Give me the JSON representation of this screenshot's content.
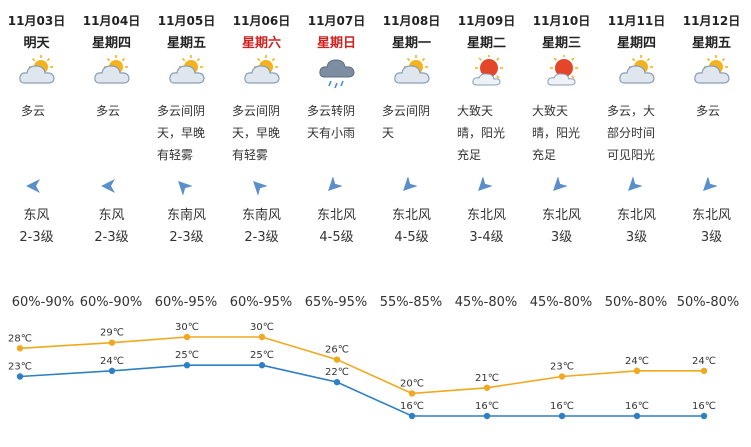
{
  "colors": {
    "weekend_text": "#d21f1f",
    "high_line": "#f0a81e",
    "low_line": "#2f7fc4",
    "wind_arrow": "#5b8fc9",
    "sun": "#f5b21c",
    "sun_red": "#e4462a",
    "cloud": "#8aa0b8"
  },
  "days": [
    {
      "date": "11月03日",
      "weekday": "明天",
      "weekend": false,
      "icon": "partly-cloudy-icon",
      "desc": [
        "多云"
      ],
      "wind_dir": "东风",
      "wind_level": "2-3级",
      "wind_heading": "east",
      "humidity": "60%-90%"
    },
    {
      "date": "11月04日",
      "weekday": "星期四",
      "weekend": false,
      "icon": "partly-cloudy-icon",
      "desc": [
        "多云"
      ],
      "wind_dir": "东风",
      "wind_level": "2-3级",
      "wind_heading": "east",
      "humidity": "60%-90%"
    },
    {
      "date": "11月05日",
      "weekday": "星期五",
      "weekend": false,
      "icon": "partly-cloudy-icon",
      "desc": [
        "多云间阴",
        "天，早晚",
        "有轻雾"
      ],
      "wind_dir": "东南风",
      "wind_level": "2-3级",
      "wind_heading": "southeast",
      "humidity": "60%-95%"
    },
    {
      "date": "11月06日",
      "weekday": "星期六",
      "weekend": true,
      "icon": "partly-cloudy-icon",
      "desc": [
        "多云间阴",
        "天，早晚",
        "有轻雾"
      ],
      "wind_dir": "东南风",
      "wind_level": "2-3级",
      "wind_heading": "southeast",
      "humidity": "60%-95%"
    },
    {
      "date": "11月07日",
      "weekday": "星期日",
      "weekend": true,
      "icon": "light-rain-icon",
      "desc": [
        "多云转阴",
        "天有小雨"
      ],
      "wind_dir": "东北风",
      "wind_level": "4-5级",
      "wind_heading": "northeast",
      "humidity": "65%-95%"
    },
    {
      "date": "11月08日",
      "weekday": "星期一",
      "weekend": false,
      "icon": "partly-cloudy-icon",
      "desc": [
        "多云间阴",
        "天"
      ],
      "wind_dir": "东北风",
      "wind_level": "4-5级",
      "wind_heading": "northeast",
      "humidity": "55%-85%"
    },
    {
      "date": "11月09日",
      "weekday": "星期二",
      "weekend": false,
      "icon": "sunny-cloud-icon",
      "desc": [
        "大致天",
        "晴，阳光",
        "充足"
      ],
      "wind_dir": "东北风",
      "wind_level": "3-4级",
      "wind_heading": "northeast",
      "humidity": "45%-80%"
    },
    {
      "date": "11月10日",
      "weekday": "星期三",
      "weekend": false,
      "icon": "sunny-cloud-icon",
      "desc": [
        "大致天",
        "晴，阳光",
        "充足"
      ],
      "wind_dir": "东北风",
      "wind_level": "3级",
      "wind_heading": "northeast",
      "humidity": "45%-80%"
    },
    {
      "date": "11月11日",
      "weekday": "星期四",
      "weekend": false,
      "icon": "partly-cloudy-icon",
      "desc": [
        "多云，大",
        "部分时间",
        "可见阳光"
      ],
      "wind_dir": "东北风",
      "wind_level": "3级",
      "wind_heading": "northeast",
      "humidity": "50%-80%"
    },
    {
      "date": "11月12日",
      "weekday": "星期五",
      "weekend": false,
      "icon": "partly-cloudy-icon",
      "desc": [
        "多云"
      ],
      "wind_dir": "东北风",
      "wind_level": "3级",
      "wind_heading": "northeast",
      "humidity": "50%-80%"
    }
  ],
  "chart_data": {
    "type": "line",
    "categories": [
      "11月03日",
      "11月04日",
      "11月05日",
      "11月06日",
      "11月07日",
      "11月08日",
      "11月09日",
      "11月10日",
      "11月11日",
      "11月12日"
    ],
    "series": [
      {
        "key": "high",
        "values": [
          28,
          29,
          30,
          30,
          26,
          20,
          21,
          23,
          24,
          24
        ],
        "labels": [
          "28℃",
          "29℃",
          "30℃",
          "30℃",
          "26℃",
          "20℃",
          "21℃",
          "23℃",
          "24℃",
          "24℃"
        ]
      },
      {
        "key": "low",
        "values": [
          23,
          24,
          25,
          25,
          22,
          16,
          16,
          16,
          16,
          16
        ],
        "labels": [
          "23℃",
          "24℃",
          "25℃",
          "25℃",
          "22℃",
          "16℃",
          "16℃",
          "16℃",
          "16℃",
          "16℃"
        ]
      }
    ],
    "ylim": [
      16,
      30
    ],
    "grid": false,
    "legend": "none"
  }
}
